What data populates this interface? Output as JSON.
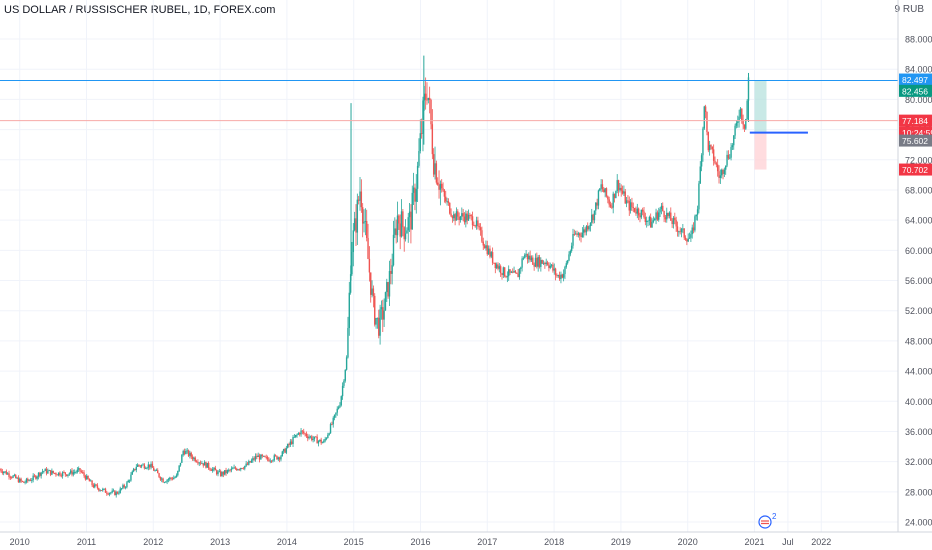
{
  "header": {
    "title": "US DOLLAR / RUSSISCHER RUBEL, 1D, FOREX.com",
    "currency_badge": "RUB",
    "currency_prefix": "9"
  },
  "colors": {
    "up": "#26a69a",
    "down": "#ef5350",
    "grid": "#f0f3fa",
    "axis_text": "#50535e",
    "resistance_line": "#2196f3",
    "last_price_line": "#f7a9a7",
    "position_line": "#2962ff",
    "target_zone": "#b2dfdb",
    "stop_zone": "#ffcdd2",
    "badge_teal": "#089981",
    "badge_red": "#f23645",
    "badge_grey": "#787b86"
  },
  "chart_data": {
    "type": "candlestick",
    "symbol": "USD/RUB",
    "interval": "1D",
    "source": "FOREX.com",
    "y_range": [
      22,
      90
    ],
    "x_range": [
      "2009-09",
      "2022-07"
    ],
    "x_ticks": [
      "2010",
      "2011",
      "2012",
      "2013",
      "2014",
      "2015",
      "2016",
      "2017",
      "2018",
      "2019",
      "2020",
      "2021",
      "Jul",
      "2022"
    ],
    "y_ticks": [
      "88.000",
      "84.000",
      "80.000",
      "76.000",
      "72.000",
      "68.000",
      "64.000",
      "60.000",
      "56.000",
      "52.000",
      "48.000",
      "44.000",
      "40.000",
      "36.000",
      "32.000",
      "28.000",
      "24.000"
    ],
    "price_path": [
      [
        2009.7,
        31.0
      ],
      [
        2009.9,
        30.0
      ],
      [
        2010.05,
        29.2
      ],
      [
        2010.2,
        29.8
      ],
      [
        2010.35,
        30.8
      ],
      [
        2010.5,
        30.5
      ],
      [
        2010.7,
        30.4
      ],
      [
        2010.9,
        30.8
      ],
      [
        2011.1,
        28.8
      ],
      [
        2011.3,
        28.0
      ],
      [
        2011.45,
        27.8
      ],
      [
        2011.6,
        29.0
      ],
      [
        2011.75,
        31.5
      ],
      [
        2011.95,
        31.5
      ],
      [
        2012.15,
        29.5
      ],
      [
        2012.35,
        30.0
      ],
      [
        2012.45,
        33.5
      ],
      [
        2012.6,
        32.5
      ],
      [
        2012.8,
        31.5
      ],
      [
        2013.0,
        30.3
      ],
      [
        2013.2,
        31.0
      ],
      [
        2013.4,
        31.5
      ],
      [
        2013.55,
        32.7
      ],
      [
        2013.7,
        32.3
      ],
      [
        2013.9,
        32.7
      ],
      [
        2014.1,
        35.0
      ],
      [
        2014.2,
        36.0
      ],
      [
        2014.4,
        35.0
      ],
      [
        2014.55,
        34.5
      ],
      [
        2014.7,
        37.5
      ],
      [
        2014.8,
        40.0
      ],
      [
        2014.9,
        46.0
      ],
      [
        2014.96,
        60.0
      ],
      [
        2015.02,
        63.0
      ],
      [
        2015.1,
        68.5
      ],
      [
        2015.2,
        60.0
      ],
      [
        2015.3,
        52.0
      ],
      [
        2015.37,
        50.0
      ],
      [
        2015.45,
        52.0
      ],
      [
        2015.55,
        57.0
      ],
      [
        2015.65,
        64.5
      ],
      [
        2015.75,
        63.0
      ],
      [
        2015.85,
        64.0
      ],
      [
        2015.95,
        70.0
      ],
      [
        2016.05,
        79.0
      ],
      [
        2016.1,
        82.0
      ],
      [
        2016.2,
        72.0
      ],
      [
        2016.35,
        67.0
      ],
      [
        2016.5,
        64.5
      ],
      [
        2016.65,
        64.5
      ],
      [
        2016.8,
        64.0
      ],
      [
        2016.95,
        61.0
      ],
      [
        2017.1,
        58.5
      ],
      [
        2017.25,
        57.0
      ],
      [
        2017.45,
        56.5
      ],
      [
        2017.55,
        59.5
      ],
      [
        2017.7,
        58.5
      ],
      [
        2017.9,
        58.5
      ],
      [
        2018.05,
        56.5
      ],
      [
        2018.15,
        57.0
      ],
      [
        2018.3,
        62.0
      ],
      [
        2018.45,
        62.5
      ],
      [
        2018.6,
        65.0
      ],
      [
        2018.7,
        68.5
      ],
      [
        2018.85,
        66.0
      ],
      [
        2018.95,
        69.0
      ],
      [
        2019.1,
        66.0
      ],
      [
        2019.3,
        65.0
      ],
      [
        2019.45,
        63.5
      ],
      [
        2019.6,
        65.5
      ],
      [
        2019.75,
        64.0
      ],
      [
        2019.95,
        62.0
      ],
      [
        2020.05,
        61.5
      ],
      [
        2020.15,
        66.0
      ],
      [
        2020.22,
        75.0
      ],
      [
        2020.25,
        80.0
      ],
      [
        2020.3,
        74.0
      ],
      [
        2020.4,
        72.0
      ],
      [
        2020.48,
        69.5
      ],
      [
        2020.55,
        71.5
      ],
      [
        2020.65,
        73.5
      ],
      [
        2020.72,
        76.0
      ],
      [
        2020.78,
        79.0
      ],
      [
        2020.82,
        77.5
      ],
      [
        2020.86,
        76.5
      ],
      [
        2020.88,
        78.5
      ],
      [
        2020.91,
        82.5
      ]
    ],
    "annotations": {
      "resistance_level": 82.497,
      "last_price": 77.184,
      "position_entry": 75.602,
      "target_price": 82.456,
      "stop_price": 70.702,
      "countdown": "10:24:59"
    },
    "price_labels": [
      "82.497",
      "82.456",
      "77.184",
      "10:24:59",
      "75.602",
      "70.702"
    ],
    "grid": true
  },
  "footer": {
    "event_badge_count": "2"
  }
}
